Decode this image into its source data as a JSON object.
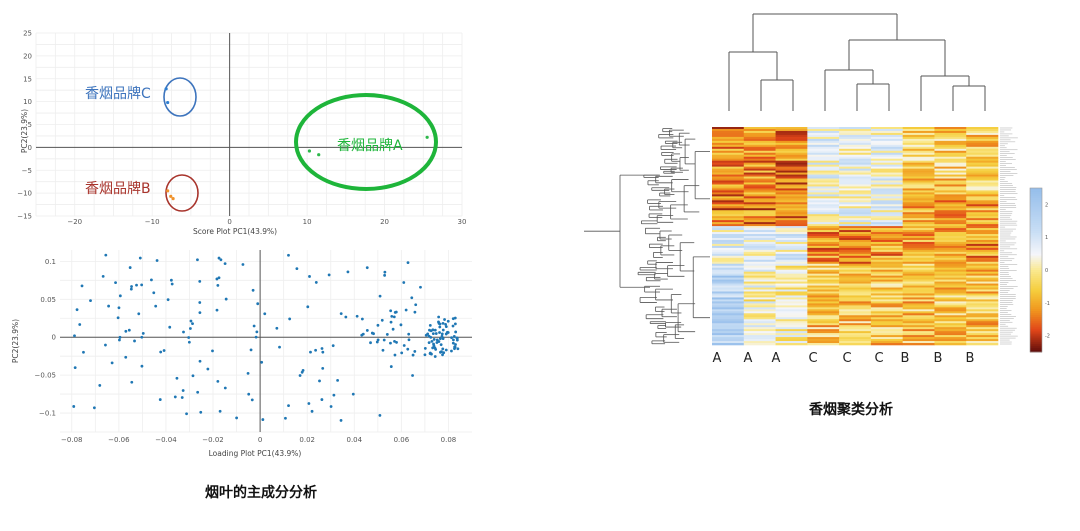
{
  "chart_data": [
    {
      "type": "scatter",
      "xlabel": "Score Plot PC1(43.9%)",
      "ylabel": "PC2(23.9%)",
      "xlim": [
        -25,
        30
      ],
      "ylim": [
        -15,
        25
      ],
      "x_ticks": [
        -20,
        -10,
        0,
        10,
        20,
        30
      ],
      "y_ticks": [
        -15,
        -10,
        -5,
        0,
        5,
        10,
        15,
        20,
        25
      ],
      "grid": true,
      "series": [
        {
          "name": "香烟品牌A",
          "color": "#2db84b",
          "points": [
            [
              10.3,
              -0.8
            ],
            [
              11.5,
              -1.6
            ],
            [
              25.5,
              2.2
            ]
          ]
        },
        {
          "name": "香烟品牌B",
          "color": "#f0922b",
          "points": [
            [
              -8.0,
              -9.5
            ],
            [
              -7.6,
              -10.7
            ],
            [
              -7.3,
              -11.2
            ]
          ]
        },
        {
          "name": "香烟品牌C",
          "color": "#2f7fd1",
          "points": [
            [
              -8.2,
              12.8
            ],
            [
              -8.0,
              9.8
            ]
          ]
        }
      ],
      "annotation_colors": {
        "A": "#1eb53a",
        "B": "#a8342c",
        "C": "#3d74bd"
      }
    },
    {
      "type": "scatter",
      "xlabel": "Loading Plot PC1(43.9%)",
      "ylabel": "PC2(23.9%)",
      "xlim": [
        -0.085,
        0.09
      ],
      "ylim": [
        -0.125,
        0.115
      ],
      "x_ticks": [
        -0.08,
        -0.06,
        -0.04,
        -0.02,
        0,
        0.02,
        0.04,
        0.06,
        0.08
      ],
      "y_ticks": [
        -0.1,
        -0.05,
        0,
        0.05,
        0.1
      ],
      "grid": true,
      "color": "#1f77b4"
    },
    {
      "type": "heatmap",
      "column_labels": [
        "A",
        "A",
        "A",
        "C",
        "C",
        "C",
        "B",
        "B",
        "B"
      ],
      "colorbar_ticks": [
        "2",
        "1",
        "0",
        "-1",
        "-2"
      ]
    }
  ],
  "captions": {
    "pca": "烟叶的主成分分析",
    "cluster": "香烟聚类分析"
  },
  "tick_text": {
    "score_x": [
      "−20",
      "−10",
      "0",
      "10",
      "20",
      "30"
    ],
    "score_y": [
      "25",
      "20",
      "15",
      "10",
      "5",
      "0",
      "−5",
      "−10",
      "−15"
    ],
    "load_x": [
      "−0.08",
      "−0.06",
      "−0.04",
      "−0.02",
      "0",
      "0.02",
      "0.04",
      "0.06",
      "0.08"
    ],
    "load_y": [
      "0.1",
      "0.05",
      "0",
      "−0.05",
      "−0.1"
    ]
  }
}
